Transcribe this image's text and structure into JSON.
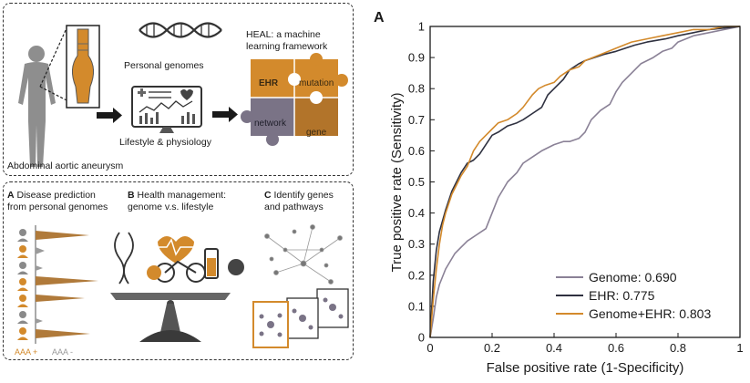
{
  "overview": {
    "personal_genomes": "Personal genomes",
    "lifestyle": "Lifestyle & physiology",
    "aaa": "Abdominal aortic aneurysm",
    "heal_line1": "HEAL: a machine",
    "heal_line2": "learning framework",
    "puzzle": {
      "ehr": "EHR",
      "mutation": "mutation",
      "network": "network",
      "gene": "gene"
    },
    "colors": {
      "orange": "#D38A2C",
      "gray": "#7A7386",
      "dark": "#3a3a3a"
    }
  },
  "applications": {
    "a_letter": "A",
    "a_line1": "Disease prediction",
    "a_line2": "from personal genomes",
    "b_letter": "B",
    "b_line1": "Health management:",
    "b_line2": "genome v.s. lifestyle",
    "c_letter": "C",
    "c_line1": "Identify genes",
    "c_line2": "and pathways",
    "aaa_plus": "AAA +",
    "aaa_minus": "AAA -"
  },
  "chart_data": {
    "type": "line",
    "panel_label": "A",
    "xlabel": "False positive rate (1-Specificity)",
    "ylabel": "True positive rate (Sensitivity)",
    "xlim": [
      0,
      1
    ],
    "ylim": [
      0,
      1
    ],
    "x_ticks": [
      "0",
      "0.2",
      "0.4",
      "0.6",
      "0.8",
      "1"
    ],
    "y_ticks": [
      "0",
      "0.1",
      "0.2",
      "0.3",
      "0.4",
      "0.5",
      "0.6",
      "0.7",
      "0.8",
      "0.9",
      "1"
    ],
    "grid": false,
    "legend_position": "bottom-right",
    "series": [
      {
        "name": "Genome: 0.690",
        "color": "#8A8196",
        "x": [
          0,
          0.01,
          0.02,
          0.03,
          0.05,
          0.08,
          0.1,
          0.12,
          0.15,
          0.18,
          0.2,
          0.22,
          0.25,
          0.28,
          0.3,
          0.33,
          0.36,
          0.4,
          0.43,
          0.45,
          0.48,
          0.5,
          0.52,
          0.55,
          0.58,
          0.6,
          0.62,
          0.65,
          0.68,
          0.7,
          0.72,
          0.75,
          0.78,
          0.8,
          0.85,
          0.9,
          0.95,
          1
        ],
        "y": [
          0,
          0.06,
          0.13,
          0.17,
          0.22,
          0.27,
          0.29,
          0.31,
          0.33,
          0.35,
          0.4,
          0.45,
          0.5,
          0.53,
          0.56,
          0.58,
          0.6,
          0.62,
          0.63,
          0.63,
          0.64,
          0.66,
          0.7,
          0.73,
          0.75,
          0.79,
          0.82,
          0.85,
          0.88,
          0.89,
          0.9,
          0.92,
          0.93,
          0.95,
          0.97,
          0.98,
          0.99,
          1
        ]
      },
      {
        "name": "EHR: 0.775",
        "color": "#2F3140",
        "x": [
          0,
          0.01,
          0.02,
          0.03,
          0.05,
          0.07,
          0.1,
          0.12,
          0.14,
          0.16,
          0.18,
          0.2,
          0.22,
          0.25,
          0.28,
          0.3,
          0.33,
          0.36,
          0.38,
          0.4,
          0.43,
          0.45,
          0.48,
          0.5,
          0.53,
          0.56,
          0.6,
          0.63,
          0.66,
          0.7,
          0.73,
          0.76,
          0.8,
          0.85,
          0.9,
          0.95,
          1
        ],
        "y": [
          0,
          0.18,
          0.28,
          0.34,
          0.41,
          0.47,
          0.53,
          0.56,
          0.57,
          0.59,
          0.62,
          0.65,
          0.66,
          0.68,
          0.69,
          0.7,
          0.72,
          0.74,
          0.78,
          0.8,
          0.83,
          0.86,
          0.88,
          0.89,
          0.9,
          0.91,
          0.92,
          0.93,
          0.94,
          0.95,
          0.955,
          0.96,
          0.97,
          0.98,
          0.99,
          0.995,
          1
        ]
      },
      {
        "name": "Genome+EHR: 0.803",
        "color": "#D38A2C",
        "x": [
          0,
          0.01,
          0.02,
          0.03,
          0.04,
          0.05,
          0.07,
          0.09,
          0.1,
          0.12,
          0.14,
          0.16,
          0.18,
          0.2,
          0.22,
          0.25,
          0.28,
          0.3,
          0.33,
          0.35,
          0.37,
          0.4,
          0.42,
          0.45,
          0.48,
          0.5,
          0.55,
          0.6,
          0.65,
          0.7,
          0.75,
          0.8,
          0.85,
          0.9,
          0.95,
          1
        ],
        "y": [
          0,
          0.12,
          0.22,
          0.3,
          0.36,
          0.4,
          0.46,
          0.5,
          0.52,
          0.55,
          0.6,
          0.63,
          0.65,
          0.67,
          0.69,
          0.7,
          0.72,
          0.74,
          0.78,
          0.8,
          0.81,
          0.82,
          0.84,
          0.86,
          0.87,
          0.89,
          0.91,
          0.93,
          0.95,
          0.96,
          0.97,
          0.98,
          0.99,
          0.99,
          1,
          1
        ]
      }
    ]
  }
}
